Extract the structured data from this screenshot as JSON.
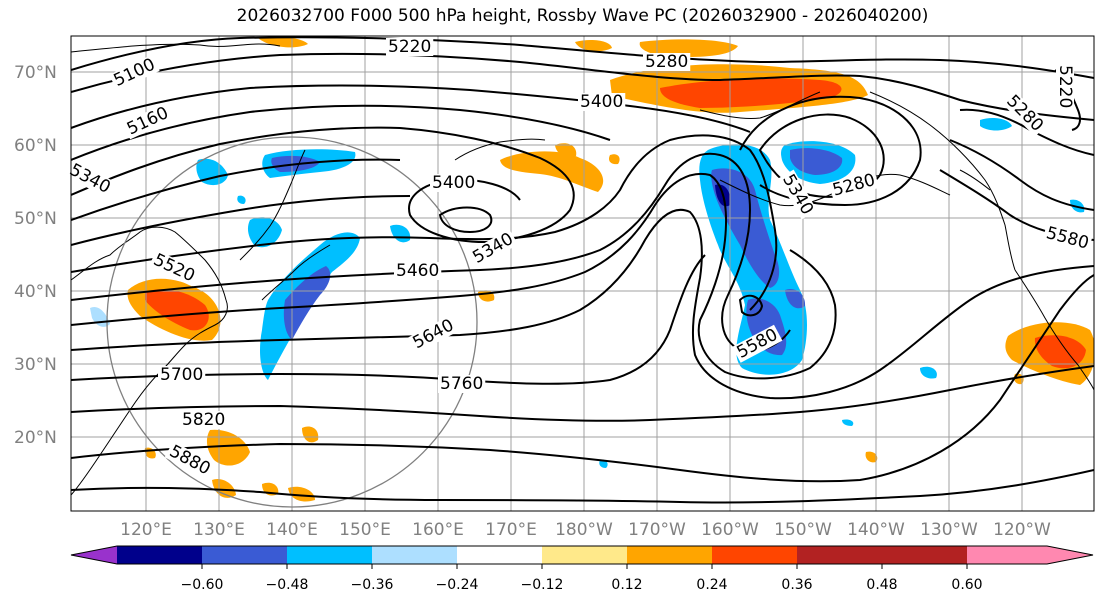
{
  "title": "2026032700 F000 500 hPa height, Rossby Wave PC (2026032900 - 2026040200)",
  "lat_labels": [
    "70°N",
    "60°N",
    "50°N",
    "40°N",
    "30°N",
    "20°N"
  ],
  "lon_labels": [
    "120°E",
    "130°E",
    "140°E",
    "150°E",
    "160°E",
    "170°E",
    "180°W",
    "170°W",
    "160°W",
    "150°W",
    "140°W",
    "130°W",
    "120°W"
  ],
  "contour_labels": [
    "5100",
    "5160",
    "5220",
    "5280",
    "5400",
    "5340",
    "5400",
    "5340",
    "5460",
    "5520",
    "5640",
    "5700",
    "5760",
    "5820",
    "5880",
    "5580",
    "5340",
    "5280",
    "5280",
    "5580",
    "5220"
  ],
  "colorbar": {
    "ticks": [
      "−0.60",
      "−0.48",
      "−0.36",
      "−0.24",
      "−0.12",
      "0.12",
      "0.24",
      "0.36",
      "0.48",
      "0.60"
    ],
    "colors": [
      "#9932CC",
      "#00008B",
      "#3A5BD4",
      "#00BFFF",
      "#ADDFFF",
      "#FFFFFF",
      "#FFE98A",
      "#FFA500",
      "#FF4500",
      "#B22222",
      "#FF88B0"
    ]
  }
}
